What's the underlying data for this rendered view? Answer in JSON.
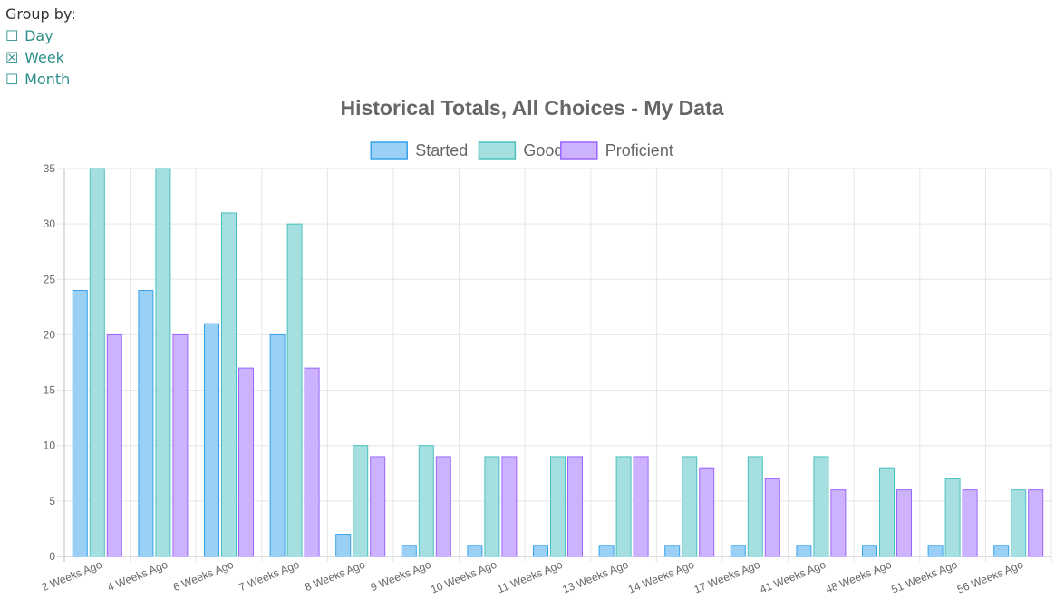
{
  "group_by": {
    "label": "Group by:",
    "options": [
      {
        "label": "Day",
        "checked": false,
        "box": "☐"
      },
      {
        "label": "Week",
        "checked": true,
        "box": "☒"
      },
      {
        "label": "Month",
        "checked": false,
        "box": "☐"
      }
    ]
  },
  "chart_data": {
    "type": "bar",
    "title": "Historical Totals, All Choices - My Data",
    "xlabel": "",
    "ylabel": "",
    "ylim": [
      0,
      35
    ],
    "yticks": [
      0,
      5,
      10,
      15,
      20,
      25,
      30,
      35
    ],
    "grid": true,
    "legend_position": "top",
    "categories": [
      "2 Weeks Ago",
      "4 Weeks Ago",
      "6 Weeks Ago",
      "7 Weeks Ago",
      "8 Weeks Ago",
      "9 Weeks Ago",
      "10 Weeks Ago",
      "11 Weeks Ago",
      "13 Weeks Ago",
      "14 Weeks Ago",
      "17 Weeks Ago",
      "41 Weeks Ago",
      "48 Weeks Ago",
      "51 Weeks Ago",
      "56 Weeks Ago"
    ],
    "series": [
      {
        "name": "Started",
        "fill": "#9ad0f5",
        "stroke": "#36a2eb",
        "values": [
          24,
          24,
          21,
          20,
          2,
          1,
          1,
          1,
          1,
          1,
          1,
          1,
          1,
          1,
          1
        ]
      },
      {
        "name": "Good",
        "fill": "#a5dfdf",
        "stroke": "#4bc0c0",
        "values": [
          35,
          35,
          31,
          30,
          10,
          10,
          9,
          9,
          9,
          9,
          9,
          9,
          8,
          7,
          6
        ]
      },
      {
        "name": "Proficient",
        "fill": "#ccb2ff",
        "stroke": "#9966ff",
        "values": [
          20,
          20,
          17,
          17,
          9,
          9,
          9,
          9,
          9,
          8,
          7,
          6,
          6,
          6,
          6
        ]
      }
    ]
  }
}
